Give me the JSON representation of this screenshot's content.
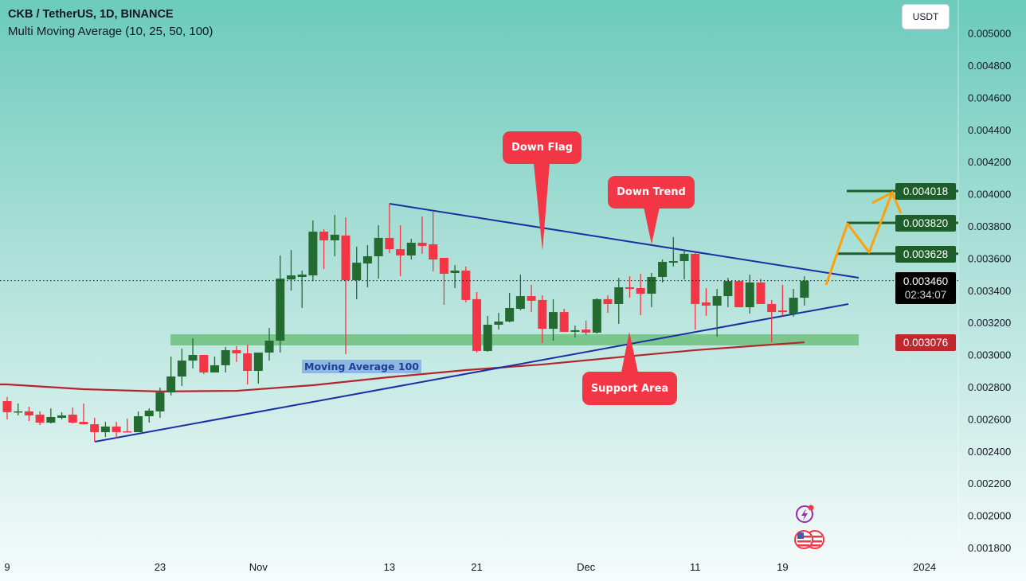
{
  "header": {
    "title": "CKB / TetherUS, 1D, BINANCE",
    "indicator": "Multi Moving Average (10, 25, 50, 100)",
    "currency_button": "USDT"
  },
  "colors": {
    "up": "#246b31",
    "down": "#f23645",
    "ma100": "#b3262f",
    "trendline": "#1a2fa0",
    "support_zone": "#6fc07d",
    "targets": "#1e5e2a",
    "projection": "#ff9f0a",
    "callout": "#f23645"
  },
  "annotations": {
    "down_flag": "Down Flag",
    "down_trend": "Down Trend",
    "support_area": "Support Area",
    "ma_label": "Moving Average 100"
  },
  "price_tags": {
    "target_3": "0.004018",
    "target_2": "0.003820",
    "target_1": "0.003628",
    "last_price": "0.003460",
    "countdown": "02:34:07",
    "ma_value": "0.003076"
  },
  "icons": [
    "lightning-icon",
    "us-flag-icon"
  ],
  "chart_data": {
    "type": "candlestick",
    "title": "CKB / TetherUS, 1D, BINANCE",
    "ylim": [
      0.0018,
      0.005
    ],
    "y_ticks": [
      "0.005000",
      "0.004800",
      "0.004600",
      "0.004400",
      "0.004200",
      "0.004000",
      "0.003800",
      "0.003600",
      "0.003400",
      "0.003200",
      "0.003000",
      "0.002800",
      "0.002600",
      "0.002400",
      "0.002200",
      "0.002000",
      "0.001800"
    ],
    "x_ticks": [
      {
        "label": "9",
        "date": "2023-10-09"
      },
      {
        "label": "23",
        "date": "2023-10-23"
      },
      {
        "label": "Nov",
        "date": "2023-11-01"
      },
      {
        "label": "13",
        "date": "2023-11-13"
      },
      {
        "label": "21",
        "date": "2023-11-21"
      },
      {
        "label": "Dec",
        "date": "2023-12-01"
      },
      {
        "label": "11",
        "date": "2023-12-11"
      },
      {
        "label": "19",
        "date": "2023-12-19"
      },
      {
        "label": "2024",
        "date": "2024-01-01"
      }
    ],
    "candles_format": [
      "date",
      "open",
      "high",
      "low",
      "close"
    ],
    "candles": [
      [
        "2023-10-09",
        0.002711,
        0.002736,
        0.002597,
        0.002642
      ],
      [
        "2023-10-10",
        0.002642,
        0.002696,
        0.002622,
        0.002647
      ],
      [
        "2023-10-11",
        0.002647,
        0.002676,
        0.002587,
        0.002622
      ],
      [
        "2023-10-12",
        0.002627,
        0.002647,
        0.002562,
        0.002577
      ],
      [
        "2023-10-13",
        0.002577,
        0.002666,
        0.002572,
        0.002612
      ],
      [
        "2023-10-14",
        0.002607,
        0.002642,
        0.002597,
        0.002622
      ],
      [
        "2023-10-15",
        0.002627,
        0.002671,
        0.002572,
        0.002577
      ],
      [
        "2023-10-16",
        0.002582,
        0.002696,
        0.002567,
        0.002567
      ],
      [
        "2023-10-17",
        0.002567,
        0.002607,
        0.002459,
        0.002518
      ],
      [
        "2023-10-18",
        0.002518,
        0.002582,
        0.002488,
        0.002553
      ],
      [
        "2023-10-19",
        0.002553,
        0.002582,
        0.002478,
        0.002518
      ],
      [
        "2023-10-20",
        0.002523,
        0.002602,
        0.002518,
        0.002518
      ],
      [
        "2023-10-21",
        0.002518,
        0.002647,
        0.002518,
        0.002617
      ],
      [
        "2023-10-22",
        0.002617,
        0.002666,
        0.002577,
        0.002652
      ],
      [
        "2023-10-23",
        0.002647,
        0.002795,
        0.002607,
        0.002765
      ],
      [
        "2023-10-24",
        0.002765,
        0.002988,
        0.002746,
        0.002864
      ],
      [
        "2023-10-25",
        0.002864,
        0.003038,
        0.002805,
        0.002963
      ],
      [
        "2023-10-26",
        0.002963,
        0.003102,
        0.002914,
        0.002998
      ],
      [
        "2023-10-27",
        0.002998,
        0.002998,
        0.002879,
        0.002889
      ],
      [
        "2023-10-28",
        0.002889,
        0.002988,
        0.002889,
        0.002934
      ],
      [
        "2023-10-29",
        0.002934,
        0.003048,
        0.002889,
        0.003028
      ],
      [
        "2023-10-30",
        0.003028,
        0.003053,
        0.002954,
        0.003008
      ],
      [
        "2023-10-31",
        0.003008,
        0.003062,
        0.002815,
        0.002899
      ],
      [
        "2023-11-01",
        0.002899,
        0.003013,
        0.00282,
        0.003013
      ],
      [
        "2023-11-02",
        0.003013,
        0.003166,
        0.002963,
        0.003087
      ],
      [
        "2023-11-03",
        0.003087,
        0.003617,
        0.003013,
        0.003473
      ],
      [
        "2023-11-04",
        0.003468,
        0.003651,
        0.003399,
        0.003493
      ],
      [
        "2023-11-05",
        0.003483,
        0.003523,
        0.00329,
        0.003498
      ],
      [
        "2023-11-06",
        0.003493,
        0.003835,
        0.003458,
        0.003765
      ],
      [
        "2023-11-07",
        0.003765,
        0.00378,
        0.003533,
        0.003711
      ],
      [
        "2023-11-08",
        0.003711,
        0.003869,
        0.003612,
        0.003746
      ],
      [
        "2023-11-09",
        0.003741,
        0.003854,
        0.003003,
        0.003463
      ],
      [
        "2023-11-10",
        0.003463,
        0.003671,
        0.003345,
        0.003572
      ],
      [
        "2023-11-11",
        0.003567,
        0.003681,
        0.003419,
        0.003612
      ],
      [
        "2023-11-12",
        0.003612,
        0.003805,
        0.003473,
        0.003726
      ],
      [
        "2023-11-13",
        0.003726,
        0.003939,
        0.003632,
        0.003656
      ],
      [
        "2023-11-14",
        0.003656,
        0.003805,
        0.003488,
        0.003617
      ],
      [
        "2023-11-15",
        0.003617,
        0.003721,
        0.003592,
        0.003696
      ],
      [
        "2023-11-16",
        0.003696,
        0.003859,
        0.003627,
        0.003676
      ],
      [
        "2023-11-17",
        0.003686,
        0.003894,
        0.003518,
        0.003592
      ],
      [
        "2023-11-18",
        0.003602,
        0.003602,
        0.00331,
        0.003503
      ],
      [
        "2023-11-19",
        0.003508,
        0.003557,
        0.003414,
        0.003523
      ],
      [
        "2023-11-20",
        0.003523,
        0.003548,
        0.003325,
        0.00334
      ],
      [
        "2023-11-21",
        0.003345,
        0.003389,
        0.003013,
        0.003023
      ],
      [
        "2023-11-22",
        0.003023,
        0.003241,
        0.003018,
        0.003186
      ],
      [
        "2023-11-23",
        0.003186,
        0.00326,
        0.003156,
        0.003206
      ],
      [
        "2023-11-24",
        0.003206,
        0.003384,
        0.003201,
        0.00329
      ],
      [
        "2023-11-25",
        0.003285,
        0.003498,
        0.003275,
        0.003364
      ],
      [
        "2023-11-26",
        0.003364,
        0.003434,
        0.003265,
        0.003335
      ],
      [
        "2023-11-27",
        0.00334,
        0.003369,
        0.003072,
        0.003161
      ],
      [
        "2023-11-28",
        0.003161,
        0.003345,
        0.003087,
        0.003265
      ],
      [
        "2023-11-29",
        0.003265,
        0.003285,
        0.003142,
        0.003142
      ],
      [
        "2023-11-30",
        0.003142,
        0.003181,
        0.003107,
        0.003152
      ],
      [
        "2023-12-01",
        0.003156,
        0.003211,
        0.003122,
        0.003137
      ],
      [
        "2023-12-02",
        0.003137,
        0.00335,
        0.003132,
        0.003345
      ],
      [
        "2023-12-03",
        0.003345,
        0.003369,
        0.00326,
        0.003315
      ],
      [
        "2023-12-04",
        0.003315,
        0.003478,
        0.003191,
        0.003419
      ],
      [
        "2023-12-05",
        0.003419,
        0.003488,
        0.003354,
        0.003409
      ],
      [
        "2023-12-06",
        0.003414,
        0.003503,
        0.003246,
        0.003379
      ],
      [
        "2023-12-07",
        0.003379,
        0.003508,
        0.003295,
        0.003483
      ],
      [
        "2023-12-08",
        0.003483,
        0.003592,
        0.003449,
        0.003577
      ],
      [
        "2023-12-09",
        0.003572,
        0.003731,
        0.003548,
        0.003582
      ],
      [
        "2023-12-10",
        0.003582,
        0.003651,
        0.003468,
        0.003627
      ],
      [
        "2023-12-11",
        0.003627,
        0.003632,
        0.003156,
        0.003315
      ],
      [
        "2023-12-12",
        0.003325,
        0.003414,
        0.003241,
        0.003305
      ],
      [
        "2023-12-13",
        0.003305,
        0.003409,
        0.003112,
        0.003364
      ],
      [
        "2023-12-14",
        0.003364,
        0.003478,
        0.003295,
        0.003458
      ],
      [
        "2023-12-15",
        0.003458,
        0.003458,
        0.003295,
        0.003295
      ],
      [
        "2023-12-16",
        0.003295,
        0.003498,
        0.003255,
        0.003449
      ],
      [
        "2023-12-17",
        0.003449,
        0.003473,
        0.003315,
        0.003315
      ],
      [
        "2023-12-18",
        0.003315,
        0.00334,
        0.003077,
        0.003265
      ],
      [
        "2023-12-19",
        0.003275,
        0.003434,
        0.003241,
        0.003265
      ],
      [
        "2023-12-20",
        0.003255,
        0.003409,
        0.003236,
        0.003354
      ],
      [
        "2023-12-21",
        0.003354,
        0.003488,
        0.003305,
        0.00346
      ]
    ],
    "ma100": [
      [
        "2023-10-09",
        0.002815
      ],
      [
        "2023-10-16",
        0.002785
      ],
      [
        "2023-10-23",
        0.002771
      ],
      [
        "2023-10-30",
        0.002775
      ],
      [
        "2023-11-06",
        0.00281
      ],
      [
        "2023-11-13",
        0.00286
      ],
      [
        "2023-11-20",
        0.002904
      ],
      [
        "2023-11-27",
        0.002939
      ],
      [
        "2023-12-04",
        0.002984
      ],
      [
        "2023-12-11",
        0.003028
      ],
      [
        "2023-12-21",
        0.003077
      ]
    ],
    "targets": [
      0.003628,
      0.00382,
      0.004018
    ],
    "last_price": 0.00346
  }
}
